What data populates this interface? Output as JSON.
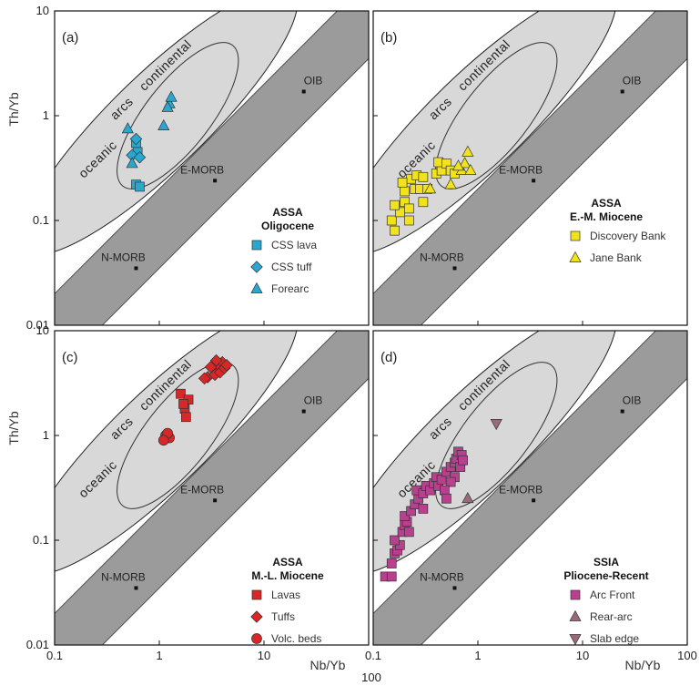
{
  "chart_data": {
    "type": "scatter",
    "x_axis": {
      "label": "Nb/Yb",
      "scale": "log",
      "range": [
        0.1,
        100
      ],
      "ticks": [
        "0.1",
        "1",
        "10",
        "100"
      ],
      "corner_tick": "100"
    },
    "y_axis": {
      "label": "Th/Yb",
      "scale": "log",
      "range": [
        0.01,
        10
      ],
      "ticks": [
        "0.01",
        "0.1",
        "1",
        "10"
      ]
    },
    "reference_points": [
      {
        "name": "N-MORB",
        "x": 0.6,
        "y": 0.035
      },
      {
        "name": "E-MORB",
        "x": 3.4,
        "y": 0.24
      },
      {
        "name": "OIB",
        "x": 24,
        "y": 1.7
      }
    ],
    "arc_labels": {
      "oceanic": "oceanic",
      "arcs": "arcs",
      "continental": "continental"
    },
    "panels": [
      {
        "id": "a",
        "label": "(a)",
        "reference_labels": [
          "N-MORB",
          "E-MORB",
          "OIB"
        ],
        "legend": {
          "title": "ASSA",
          "subtitle": "Oligocene"
        },
        "series": [
          {
            "name": "CSS lava",
            "marker": "square",
            "color": "#2aa6cf",
            "points": [
              [
                0.6,
                0.22
              ],
              [
                0.65,
                0.21
              ],
              [
                0.6,
                0.55
              ],
              [
                0.62,
                0.45
              ]
            ]
          },
          {
            "name": "CSS tuff",
            "marker": "diamond",
            "color": "#2aa6cf",
            "points": [
              [
                0.6,
                0.6
              ],
              [
                0.55,
                0.42
              ],
              [
                0.65,
                0.4
              ]
            ]
          },
          {
            "name": "Forearc",
            "marker": "triangle",
            "color": "#2aa6cf",
            "points": [
              [
                0.5,
                0.75
              ],
              [
                1.1,
                0.8
              ],
              [
                1.25,
                1.3
              ],
              [
                1.3,
                1.5
              ],
              [
                1.2,
                1.2
              ],
              [
                0.55,
                0.35
              ]
            ]
          }
        ]
      },
      {
        "id": "b",
        "label": "(b)",
        "reference_labels": [
          "N-MORB",
          "E-MORB",
          "OIB"
        ],
        "legend": {
          "title": "ASSA",
          "subtitle": "E.-M. Miocene"
        },
        "series": [
          {
            "name": "Discovery Bank",
            "marker": "square",
            "color": "#f2e21c",
            "points": [
              [
                0.16,
                0.08
              ],
              [
                0.15,
                0.1
              ],
              [
                0.18,
                0.12
              ],
              [
                0.16,
                0.14
              ],
              [
                0.2,
                0.15
              ],
              [
                0.22,
                0.13
              ],
              [
                0.2,
                0.19
              ],
              [
                0.25,
                0.2
              ],
              [
                0.23,
                0.25
              ],
              [
                0.26,
                0.27
              ],
              [
                0.3,
                0.26
              ],
              [
                0.28,
                0.2
              ],
              [
                0.33,
                0.2
              ],
              [
                0.4,
                0.28
              ],
              [
                0.45,
                0.3
              ],
              [
                0.42,
                0.36
              ],
              [
                0.5,
                0.35
              ],
              [
                0.55,
                0.3
              ],
              [
                0.6,
                0.28
              ],
              [
                0.19,
                0.23
              ],
              [
                0.3,
                0.15
              ],
              [
                0.22,
                0.1
              ]
            ]
          },
          {
            "name": "Jane Bank",
            "marker": "triangle",
            "color": "#f2e21c",
            "points": [
              [
                0.55,
                0.22
              ],
              [
                0.7,
                0.3
              ],
              [
                0.75,
                0.35
              ],
              [
                0.8,
                0.45
              ],
              [
                0.85,
                0.3
              ],
              [
                0.35,
                0.2
              ],
              [
                0.65,
                0.33
              ]
            ]
          }
        ]
      },
      {
        "id": "c",
        "label": "(c)",
        "reference_labels": [
          "N-MORB",
          "E-MORB",
          "OIB"
        ],
        "legend": {
          "title": "ASSA",
          "subtitle": "M.-L. Miocene"
        },
        "series": [
          {
            "name": "Lavas",
            "marker": "square",
            "color": "#d92626",
            "points": [
              [
                1.6,
                2.5
              ],
              [
                1.75,
                1.8
              ],
              [
                1.9,
                2.2
              ],
              [
                1.8,
                1.5
              ],
              [
                1.7,
                2.0
              ]
            ]
          },
          {
            "name": "Tuffs",
            "marker": "diamond",
            "color": "#d92626",
            "points": [
              [
                2.9,
                3.6
              ],
              [
                3.3,
                4.3
              ],
              [
                3.6,
                4.8
              ],
              [
                4.0,
                5.0
              ],
              [
                3.4,
                3.8
              ],
              [
                3.1,
                4.5
              ],
              [
                3.8,
                4.0
              ],
              [
                4.2,
                4.4
              ],
              [
                2.7,
                3.5
              ],
              [
                3.5,
                5.2
              ],
              [
                4.4,
                4.7
              ]
            ]
          },
          {
            "name": "Volc. beds",
            "marker": "circle",
            "color": "#d92626",
            "points": [
              [
                1.15,
                1.0
              ],
              [
                1.25,
                0.95
              ],
              [
                1.2,
                1.05
              ],
              [
                1.1,
                0.9
              ]
            ]
          }
        ]
      },
      {
        "id": "d",
        "label": "(d)",
        "reference_labels": [
          "N-MORB",
          "E-MORB",
          "OIB"
        ],
        "legend": {
          "title": "SSIA",
          "subtitle": "Pliocene-Recent"
        },
        "series": [
          {
            "name": "Arc Front",
            "marker": "square",
            "color": "#b8408f",
            "points": [
              [
                0.13,
                0.045
              ],
              [
                0.15,
                0.045
              ],
              [
                0.15,
                0.06
              ],
              [
                0.16,
                0.075
              ],
              [
                0.17,
                0.08
              ],
              [
                0.18,
                0.09
              ],
              [
                0.16,
                0.1
              ],
              [
                0.19,
                0.12
              ],
              [
                0.2,
                0.14
              ],
              [
                0.21,
                0.15
              ],
              [
                0.2,
                0.17
              ],
              [
                0.23,
                0.19
              ],
              [
                0.25,
                0.22
              ],
              [
                0.27,
                0.25
              ],
              [
                0.26,
                0.3
              ],
              [
                0.3,
                0.28
              ],
              [
                0.32,
                0.33
              ],
              [
                0.35,
                0.3
              ],
              [
                0.38,
                0.35
              ],
              [
                0.4,
                0.4
              ],
              [
                0.42,
                0.33
              ],
              [
                0.45,
                0.38
              ],
              [
                0.5,
                0.45
              ],
              [
                0.55,
                0.5
              ],
              [
                0.6,
                0.55
              ],
              [
                0.62,
                0.6
              ],
              [
                0.65,
                0.7
              ],
              [
                0.7,
                0.65
              ],
              [
                0.6,
                0.4
              ],
              [
                0.55,
                0.36
              ],
              [
                0.48,
                0.3
              ],
              [
                0.68,
                0.5
              ],
              [
                0.72,
                0.58
              ],
              [
                0.5,
                0.25
              ],
              [
                0.3,
                0.2
              ],
              [
                0.22,
                0.12
              ]
            ]
          },
          {
            "name": "Rear-arc",
            "marker": "triangle",
            "color": "#9a6a7a",
            "points": [
              [
                0.8,
                0.25
              ]
            ]
          },
          {
            "name": "Slab edge",
            "marker": "triangle-down",
            "color": "#9a6a7a",
            "points": [
              [
                1.5,
                1.3
              ]
            ]
          }
        ]
      }
    ]
  }
}
